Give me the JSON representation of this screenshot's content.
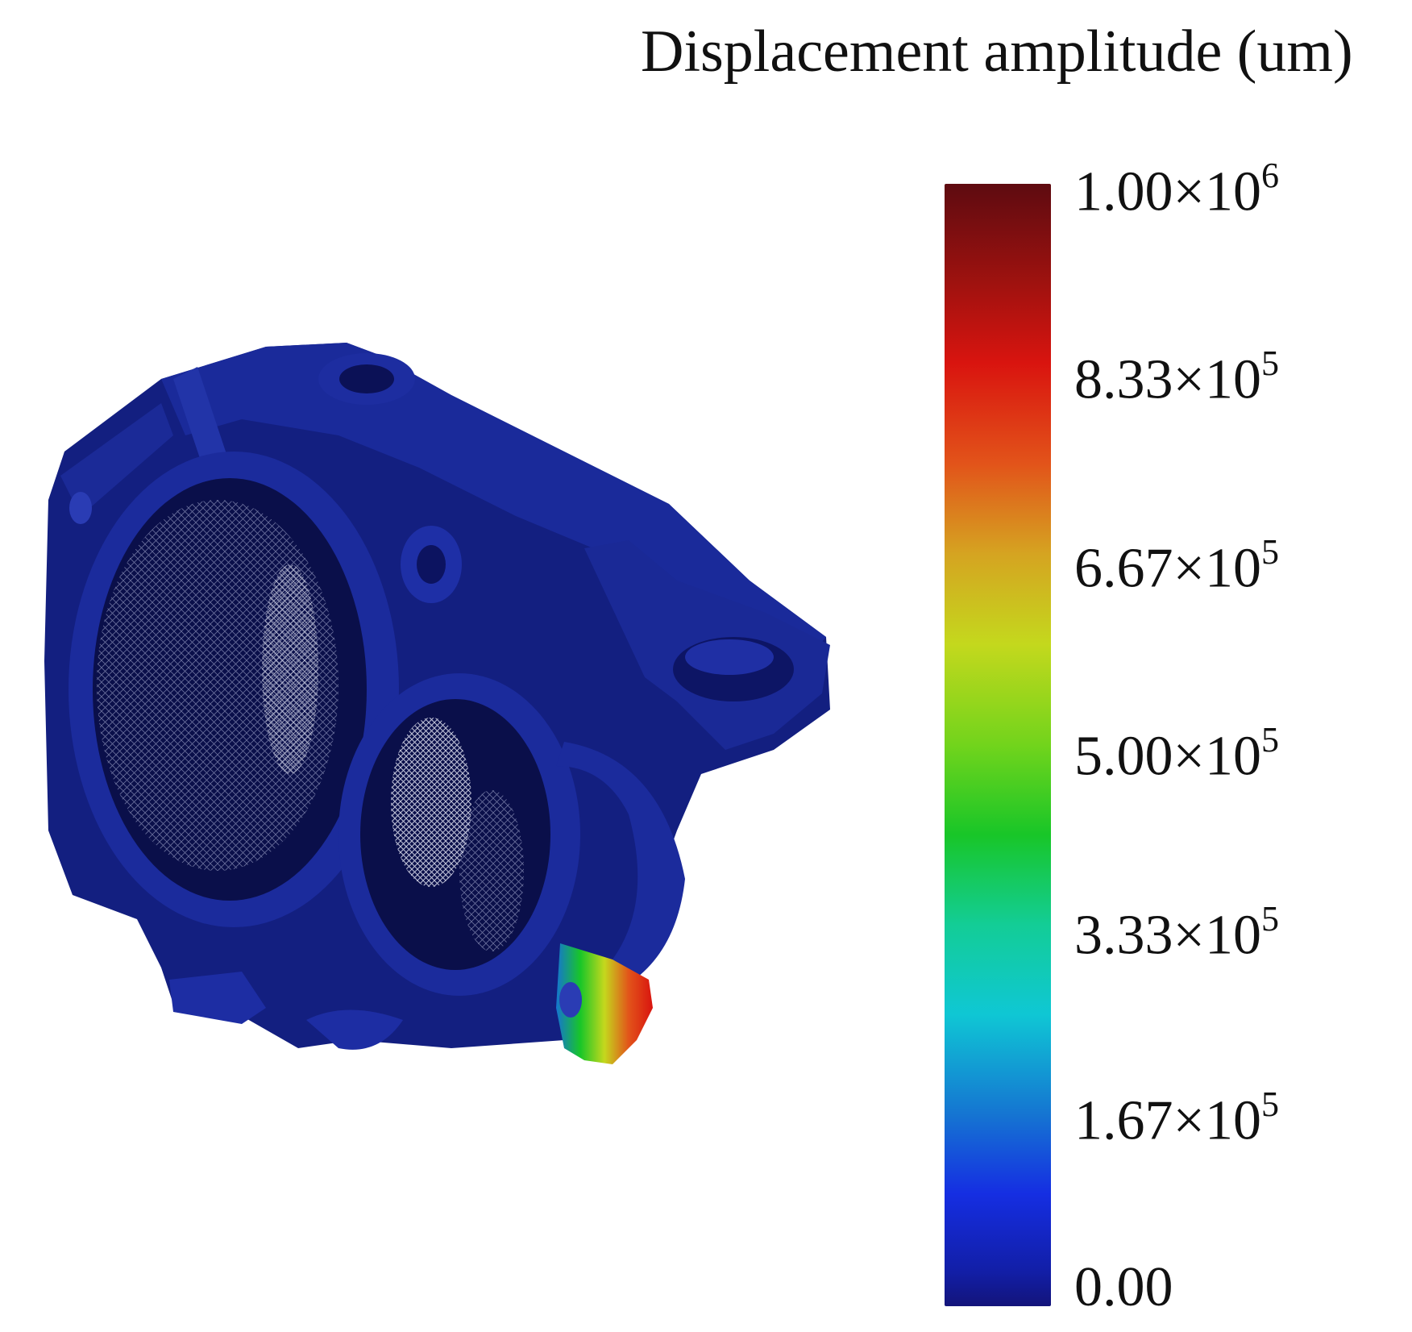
{
  "legend": {
    "title": "Displacement amplitude (um)",
    "ticks": [
      {
        "mantissa": "1.00",
        "times": "×10",
        "exp": "6"
      },
      {
        "mantissa": "8.33",
        "times": "×10",
        "exp": "5"
      },
      {
        "mantissa": "6.67",
        "times": "×10",
        "exp": "5"
      },
      {
        "mantissa": "5.00",
        "times": "×10",
        "exp": "5"
      },
      {
        "mantissa": "3.33",
        "times": "×10",
        "exp": "5"
      },
      {
        "mantissa": "1.67",
        "times": "×10",
        "exp": "5"
      },
      {
        "mantissa": "0.00",
        "times": "",
        "exp": ""
      }
    ],
    "colormap": [
      "#13147a",
      "#152ee2",
      "#1574d2",
      "#0fc7d4",
      "#18c628",
      "#c4d81d",
      "#e2541a",
      "#d9140f",
      "#5e0b10"
    ]
  },
  "model": {
    "body_color": "#121e7c",
    "shadow_color": "#0a0f4a",
    "mesh_color": "#c9cde6"
  }
}
